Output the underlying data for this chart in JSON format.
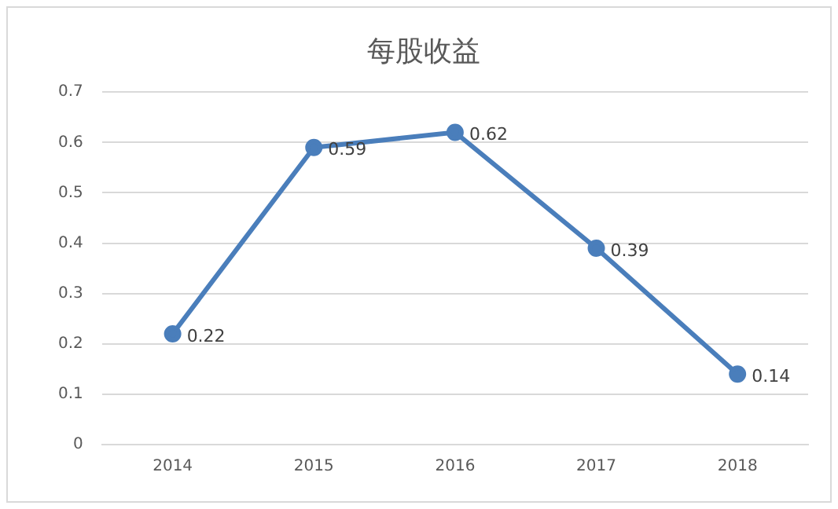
{
  "chart_data": {
    "type": "line",
    "title": "每股收益",
    "categories": [
      "2014",
      "2015",
      "2016",
      "2017",
      "2018"
    ],
    "series": [
      {
        "color": "#4a7ebb",
        "values": [
          0.22,
          0.59,
          0.62,
          0.39,
          0.14
        ]
      }
    ],
    "ylim": [
      0,
      0.7
    ],
    "yticks": [
      0,
      0.1,
      0.2,
      0.3,
      0.4,
      0.5,
      0.6,
      0.7
    ],
    "grid": "y",
    "legend": false,
    "marker": "circle",
    "line_style": "solid",
    "data_labels": true
  }
}
